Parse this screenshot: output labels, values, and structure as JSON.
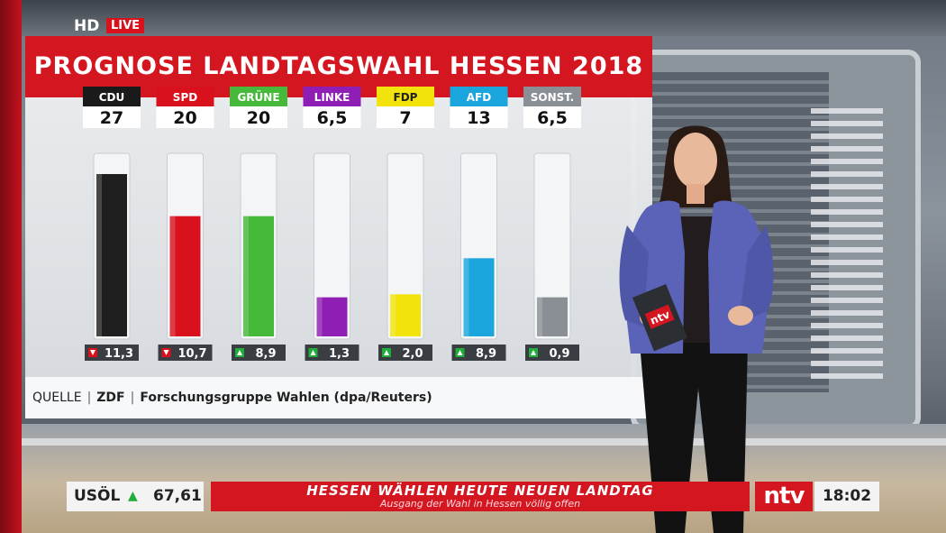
{
  "broadcast": {
    "hd_label": "HD",
    "live_label": "LIVE"
  },
  "chart_data": {
    "type": "bar",
    "title": "PROGNOSE LANDTAGSWAHL HESSEN 2018",
    "source_label": "QUELLE",
    "source_org": "ZDF",
    "source_text": "Forschungsgruppe Wahlen (dpa/Reuters)",
    "ylim": [
      0,
      30
    ],
    "categories": [
      "CDU",
      "SPD",
      "GRÜNE",
      "LINKE",
      "FDP",
      "AFD",
      "SONST."
    ],
    "values": [
      "27",
      "20",
      "20",
      "6,5",
      "7",
      "13",
      "6,5"
    ],
    "numeric_values": [
      27,
      20,
      20,
      6.5,
      7,
      13,
      6.5
    ],
    "changes": [
      "11,3",
      "10,7",
      "8,9",
      "1,3",
      "2,0",
      "8,9",
      "0,9"
    ],
    "change_directions": [
      "down",
      "down",
      "up",
      "up",
      "up",
      "up",
      "up"
    ],
    "colors": [
      "#1f1f1f",
      "#d8111d",
      "#46b83a",
      "#8f1fb4",
      "#f2e30c",
      "#1aa5dc",
      "#8a8f95"
    ],
    "label_colors": [
      "#1a1a1a",
      "#d8111d",
      "#46b83a",
      "#8f1fb4",
      "#f2e30c",
      "#1aa5dc",
      "#8a8f95"
    ],
    "label_text_colors": [
      "#ffffff",
      "#ffffff",
      "#ffffff",
      "#ffffff",
      "#222222",
      "#ffffff",
      "#ffffff"
    ],
    "down_color": "#d8111d",
    "up_color": "#1fae39"
  },
  "ticker": {
    "stock_name": "USÖL",
    "stock_direction": "up",
    "stock_value": "67,61",
    "headline": "HESSEN WÄHLEN HEUTE NEUEN LANDTAG",
    "subline": "Ausgang der Wahl in Hessen völlig offen",
    "logo": "ntv",
    "time": "18:02"
  },
  "presenter": {
    "card_logo": "ntv"
  }
}
